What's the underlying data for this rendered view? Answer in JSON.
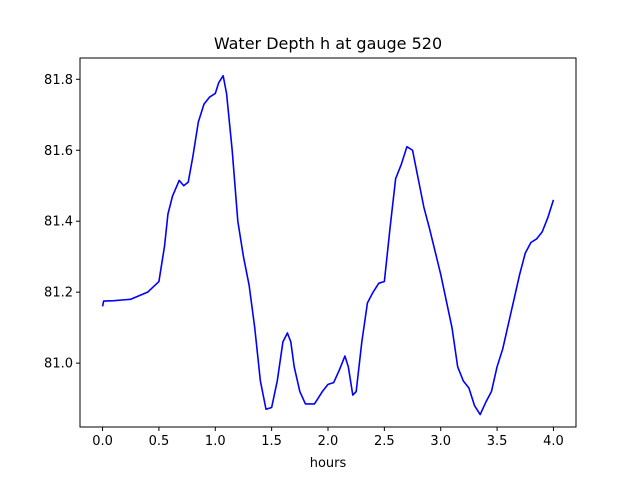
{
  "chart_data": {
    "type": "line",
    "title": "Water Depth h at gauge 520",
    "xlabel": "hours",
    "ylabel": "",
    "xlim": [
      -0.2,
      4.2
    ],
    "ylim": [
      80.82,
      81.86
    ],
    "xticks": [
      0.0,
      0.5,
      1.0,
      1.5,
      2.0,
      2.5,
      3.0,
      3.5,
      4.0
    ],
    "xtick_labels": [
      "0.0",
      "0.5",
      "1.0",
      "1.5",
      "2.0",
      "2.5",
      "3.0",
      "3.5",
      "4.0"
    ],
    "yticks": [
      81.0,
      81.2,
      81.4,
      81.6,
      81.8
    ],
    "ytick_labels": [
      "81.0",
      "81.2",
      "81.4",
      "81.6",
      "81.8"
    ],
    "grid": false,
    "series": [
      {
        "color": "#0000ff",
        "x": [
          0.0,
          0.01,
          0.1,
          0.25,
          0.4,
          0.5,
          0.55,
          0.58,
          0.62,
          0.68,
          0.72,
          0.76,
          0.8,
          0.85,
          0.9,
          0.95,
          1.0,
          1.03,
          1.07,
          1.1,
          1.15,
          1.2,
          1.25,
          1.3,
          1.35,
          1.4,
          1.45,
          1.5,
          1.55,
          1.6,
          1.64,
          1.67,
          1.7,
          1.75,
          1.8,
          1.88,
          1.95,
          2.0,
          2.05,
          2.1,
          2.15,
          2.18,
          2.22,
          2.25,
          2.3,
          2.35,
          2.4,
          2.45,
          2.5,
          2.55,
          2.6,
          2.65,
          2.7,
          2.75,
          2.8,
          2.85,
          2.9,
          3.0,
          3.1,
          3.15,
          3.2,
          3.25,
          3.3,
          3.35,
          3.4,
          3.45,
          3.5,
          3.55,
          3.6,
          3.65,
          3.7,
          3.75,
          3.8,
          3.85,
          3.9,
          3.95,
          4.0
        ],
        "y": [
          81.16,
          81.175,
          81.176,
          81.18,
          81.2,
          81.23,
          81.33,
          81.42,
          81.47,
          81.515,
          81.5,
          81.51,
          81.58,
          81.68,
          81.73,
          81.75,
          81.76,
          81.79,
          81.81,
          81.76,
          81.6,
          81.4,
          81.3,
          81.22,
          81.1,
          80.95,
          80.87,
          80.875,
          80.95,
          81.06,
          81.085,
          81.06,
          80.99,
          80.92,
          80.885,
          80.885,
          80.92,
          80.94,
          80.945,
          80.98,
          81.02,
          80.99,
          80.91,
          80.92,
          81.06,
          81.17,
          81.2,
          81.225,
          81.23,
          81.38,
          81.52,
          81.56,
          81.61,
          81.6,
          81.52,
          81.44,
          81.38,
          81.25,
          81.1,
          80.99,
          80.95,
          80.93,
          80.88,
          80.855,
          80.89,
          80.92,
          80.99,
          81.04,
          81.11,
          81.18,
          81.25,
          81.31,
          81.34,
          81.35,
          81.37,
          81.41,
          81.46
        ]
      }
    ]
  }
}
